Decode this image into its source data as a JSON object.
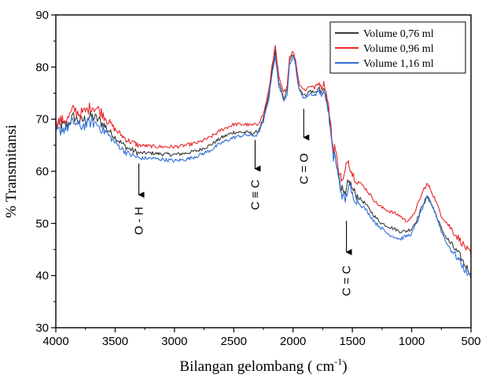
{
  "chart_data": {
    "type": "line",
    "xlabel": "Bilangan gelombang ( cm",
    "xlabel_sup": "-1",
    "xlabel_close": ")",
    "ylabel": "% Transmitansi",
    "xlim": [
      4000,
      500
    ],
    "ylim": [
      30,
      90
    ],
    "x_reversed": true,
    "xticks": [
      4000,
      3500,
      3000,
      2500,
      2000,
      1500,
      1000,
      500
    ],
    "yticks": [
      30,
      40,
      50,
      60,
      70,
      80,
      90
    ],
    "grid": false,
    "legend_position": "top-right",
    "series": [
      {
        "name": "Volume 0,76 ml",
        "color": "#3a3a3a",
        "points": [
          [
            4000,
            68.5
          ],
          [
            3900,
            69
          ],
          [
            3850,
            70.5
          ],
          [
            3800,
            69.5
          ],
          [
            3750,
            70
          ],
          [
            3700,
            70.5
          ],
          [
            3650,
            70
          ],
          [
            3600,
            69
          ],
          [
            3500,
            66.5
          ],
          [
            3400,
            64.5
          ],
          [
            3300,
            63.5
          ],
          [
            3200,
            63.5
          ],
          [
            3100,
            63.3
          ],
          [
            3000,
            63.2
          ],
          [
            2900,
            63.5
          ],
          [
            2800,
            64
          ],
          [
            2700,
            65
          ],
          [
            2600,
            66.5
          ],
          [
            2500,
            67.5
          ],
          [
            2400,
            67.5
          ],
          [
            2350,
            67.3
          ],
          [
            2300,
            67.5
          ],
          [
            2250,
            70
          ],
          [
            2200,
            75
          ],
          [
            2180,
            79
          ],
          [
            2150,
            83
          ],
          [
            2120,
            77
          ],
          [
            2100,
            75.5
          ],
          [
            2080,
            74
          ],
          [
            2050,
            75.5
          ],
          [
            2030,
            81
          ],
          [
            2000,
            82.5
          ],
          [
            1980,
            81
          ],
          [
            1950,
            76
          ],
          [
            1920,
            75
          ],
          [
            1900,
            74.5
          ],
          [
            1880,
            75
          ],
          [
            1850,
            75.5
          ],
          [
            1820,
            75
          ],
          [
            1800,
            75.5
          ],
          [
            1780,
            76
          ],
          [
            1760,
            75
          ],
          [
            1740,
            76
          ],
          [
            1720,
            74
          ],
          [
            1700,
            71.5
          ],
          [
            1680,
            67
          ],
          [
            1660,
            63
          ],
          [
            1650,
            64
          ],
          [
            1620,
            60
          ],
          [
            1600,
            57.5
          ],
          [
            1580,
            56
          ],
          [
            1560,
            55
          ],
          [
            1540,
            57.5
          ],
          [
            1520,
            58
          ],
          [
            1500,
            56.5
          ],
          [
            1450,
            55
          ],
          [
            1400,
            54
          ],
          [
            1350,
            52.5
          ],
          [
            1300,
            51
          ],
          [
            1250,
            50
          ],
          [
            1200,
            49.5
          ],
          [
            1150,
            49
          ],
          [
            1100,
            48.5
          ],
          [
            1050,
            48.5
          ],
          [
            1000,
            49
          ],
          [
            950,
            51
          ],
          [
            900,
            54
          ],
          [
            870,
            55
          ],
          [
            850,
            54.5
          ],
          [
            800,
            52
          ],
          [
            750,
            49
          ],
          [
            700,
            47
          ],
          [
            650,
            45.5
          ],
          [
            600,
            44
          ],
          [
            550,
            42
          ],
          [
            500,
            40.5
          ]
        ]
      },
      {
        "name": "Volume 0,96 ml",
        "color": "#e8262a",
        "points": [
          [
            4000,
            69.5
          ],
          [
            3900,
            70
          ],
          [
            3850,
            72
          ],
          [
            3800,
            71
          ],
          [
            3750,
            71.5
          ],
          [
            3700,
            72.5
          ],
          [
            3650,
            72
          ],
          [
            3600,
            71
          ],
          [
            3500,
            68
          ],
          [
            3400,
            66
          ],
          [
            3300,
            65
          ],
          [
            3200,
            64.8
          ],
          [
            3100,
            64.7
          ],
          [
            3000,
            64.7
          ],
          [
            2900,
            65
          ],
          [
            2800,
            65.5
          ],
          [
            2700,
            66.5
          ],
          [
            2600,
            68
          ],
          [
            2500,
            69
          ],
          [
            2400,
            69
          ],
          [
            2350,
            68.8
          ],
          [
            2300,
            69
          ],
          [
            2250,
            71
          ],
          [
            2200,
            76
          ],
          [
            2180,
            80
          ],
          [
            2150,
            84
          ],
          [
            2120,
            78
          ],
          [
            2100,
            76.5
          ],
          [
            2080,
            75
          ],
          [
            2050,
            76.5
          ],
          [
            2030,
            82
          ],
          [
            2000,
            83
          ],
          [
            1980,
            81.5
          ],
          [
            1950,
            77
          ],
          [
            1920,
            76
          ],
          [
            1900,
            75.5
          ],
          [
            1880,
            76
          ],
          [
            1850,
            76.5
          ],
          [
            1820,
            76
          ],
          [
            1800,
            76.5
          ],
          [
            1780,
            77
          ],
          [
            1760,
            76
          ],
          [
            1740,
            77
          ],
          [
            1720,
            75
          ],
          [
            1700,
            72.5
          ],
          [
            1680,
            68
          ],
          [
            1660,
            64
          ],
          [
            1650,
            65
          ],
          [
            1620,
            61
          ],
          [
            1600,
            59
          ],
          [
            1580,
            58
          ],
          [
            1560,
            60
          ],
          [
            1540,
            62.5
          ],
          [
            1520,
            61
          ],
          [
            1500,
            59.5
          ],
          [
            1450,
            58
          ],
          [
            1400,
            57
          ],
          [
            1350,
            55.5
          ],
          [
            1300,
            54
          ],
          [
            1250,
            53
          ],
          [
            1200,
            52.5
          ],
          [
            1150,
            52
          ],
          [
            1100,
            51.5
          ],
          [
            1050,
            50.5
          ],
          [
            1000,
            51
          ],
          [
            950,
            53.5
          ],
          [
            900,
            56.5
          ],
          [
            870,
            57.5
          ],
          [
            850,
            57
          ],
          [
            800,
            54.5
          ],
          [
            750,
            51.5
          ],
          [
            700,
            50
          ],
          [
            650,
            48.5
          ],
          [
            600,
            47
          ],
          [
            550,
            45.5
          ],
          [
            500,
            44
          ]
        ]
      },
      {
        "name": "Volume 1,16 ml",
        "color": "#2f6fd8",
        "points": [
          [
            4000,
            67.5
          ],
          [
            3900,
            68.5
          ],
          [
            3850,
            69.5
          ],
          [
            3800,
            68.5
          ],
          [
            3750,
            69
          ],
          [
            3700,
            69.5
          ],
          [
            3650,
            69
          ],
          [
            3600,
            68
          ],
          [
            3500,
            65.5
          ],
          [
            3400,
            63.5
          ],
          [
            3300,
            62.5
          ],
          [
            3200,
            62.5
          ],
          [
            3100,
            62.3
          ],
          [
            3000,
            62
          ],
          [
            2900,
            62.3
          ],
          [
            2800,
            63
          ],
          [
            2700,
            64
          ],
          [
            2600,
            65.5
          ],
          [
            2500,
            66.5
          ],
          [
            2400,
            67
          ],
          [
            2350,
            66.8
          ],
          [
            2300,
            67
          ],
          [
            2250,
            69.5
          ],
          [
            2200,
            74.5
          ],
          [
            2180,
            78.5
          ],
          [
            2150,
            82
          ],
          [
            2120,
            76.5
          ],
          [
            2100,
            75
          ],
          [
            2080,
            73.5
          ],
          [
            2050,
            75
          ],
          [
            2030,
            80.5
          ],
          [
            2000,
            82
          ],
          [
            1980,
            80.5
          ],
          [
            1950,
            75.5
          ],
          [
            1920,
            74.5
          ],
          [
            1900,
            74
          ],
          [
            1880,
            74.5
          ],
          [
            1850,
            75
          ],
          [
            1820,
            74.5
          ],
          [
            1800,
            75
          ],
          [
            1780,
            75.5
          ],
          [
            1760,
            74.5
          ],
          [
            1740,
            75.5
          ],
          [
            1720,
            73.5
          ],
          [
            1700,
            71
          ],
          [
            1680,
            66.5
          ],
          [
            1660,
            62.5
          ],
          [
            1650,
            63.5
          ],
          [
            1620,
            59
          ],
          [
            1600,
            56.5
          ],
          [
            1580,
            55
          ],
          [
            1560,
            54.5
          ],
          [
            1540,
            56.5
          ],
          [
            1520,
            57
          ],
          [
            1500,
            55.5
          ],
          [
            1450,
            54
          ],
          [
            1400,
            53
          ],
          [
            1350,
            51.5
          ],
          [
            1300,
            50
          ],
          [
            1250,
            49
          ],
          [
            1200,
            48
          ],
          [
            1150,
            47.5
          ],
          [
            1100,
            47
          ],
          [
            1050,
            47.5
          ],
          [
            1000,
            48
          ],
          [
            950,
            50.5
          ],
          [
            900,
            53.5
          ],
          [
            870,
            55
          ],
          [
            850,
            54.5
          ],
          [
            800,
            52
          ],
          [
            750,
            48.5
          ],
          [
            700,
            46
          ],
          [
            650,
            44.5
          ],
          [
            600,
            43
          ],
          [
            550,
            41
          ],
          [
            500,
            39.5
          ]
        ]
      }
    ],
    "annotations": [
      {
        "label": "O - H",
        "x": 3300,
        "arrow_top_y": 61.5,
        "arrow_bottom_y": 55.5,
        "text_center_y": 50.5
      },
      {
        "label": "C ≡ C",
        "x": 2320,
        "arrow_top_y": 66,
        "arrow_bottom_y": 60.5,
        "text_center_y": 55.5
      },
      {
        "label": "C = O",
        "x": 1910,
        "arrow_top_y": 72,
        "arrow_bottom_y": 66.5,
        "text_center_y": 60.5
      },
      {
        "label": "C = C",
        "x": 1550,
        "arrow_top_y": 50.5,
        "arrow_bottom_y": 44.5,
        "text_center_y": 39
      }
    ]
  }
}
